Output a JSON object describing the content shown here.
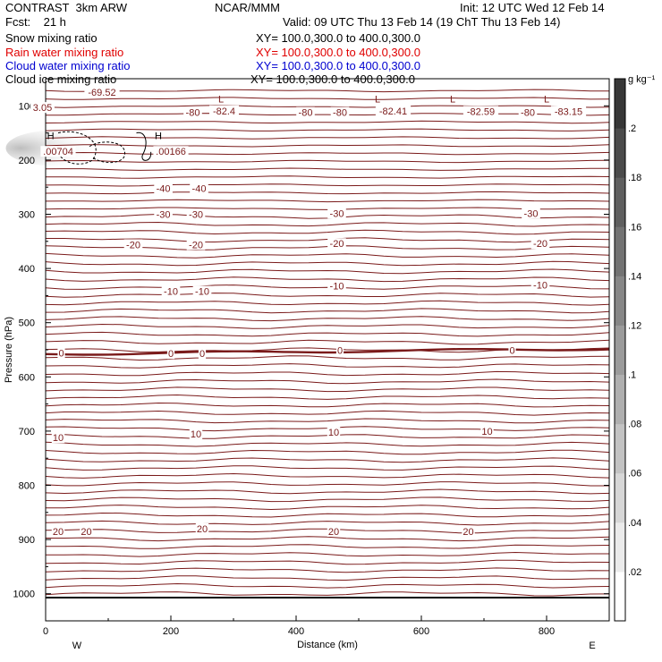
{
  "header": {
    "model": "CONTRAST  3km ARW",
    "fcst": "Fcst:    21 h",
    "org": "NCAR/MMM",
    "init": "Init: 12 UTC Wed 12 Feb 14",
    "valid": "Valid: 09 UTC Thu 13 Feb 14 (19 ChT Thu 13 Feb 14)",
    "fields": [
      {
        "name": "Snow mixing ratio",
        "xy": "XY= 100.0,300.0 to 400.0,300.0",
        "color": "#000000"
      },
      {
        "name": "Rain water mixing ratio",
        "xy": "XY= 100.0,300.0 to 400.0,300.0",
        "color": "#e00000"
      },
      {
        "name": "Cloud water mixing ratio",
        "xy": "XY= 100.0,300.0 to 400.0,300.0",
        "color": "#0000d0"
      },
      {
        "name": "Cloud ice mixing ratio",
        "xy": "XY= 100.0,300.0 to 400.0,300.0",
        "color": "#000000"
      }
    ]
  },
  "colors": {
    "contour": "#7a1a1a",
    "axis": "#000000",
    "shade_dark": "#3a3a3a"
  },
  "chart_data": {
    "type": "contour",
    "xlabel": "Distance (km)",
    "ylabel": "Pressure (hPa)",
    "xlim": [
      0,
      900
    ],
    "ylim": [
      1050,
      50
    ],
    "x_ticks": [
      0,
      200,
      400,
      600,
      800
    ],
    "y_ticks": [
      100,
      200,
      300,
      400,
      500,
      600,
      700,
      800,
      900,
      1000
    ],
    "x_end_labels": {
      "left": "W",
      "right": "E"
    },
    "colorbar": {
      "unit": "g kg⁻¹",
      "ticks": [
        ".02",
        ".04",
        ".06",
        ".08",
        ".1",
        ".12",
        ".14",
        ".16",
        ".18",
        ".2"
      ],
      "range": [
        0,
        0.22
      ]
    },
    "contour_labels": [
      {
        "text": "-69.52",
        "x": 90,
        "p": 75
      },
      {
        "text": "-80",
        "x": 235,
        "p": 112
      },
      {
        "text": "-82.4",
        "x": 285,
        "p": 109
      },
      {
        "text": "-80",
        "x": 415,
        "p": 112
      },
      {
        "text": "-80",
        "x": 470,
        "p": 112
      },
      {
        "text": "-82.41",
        "x": 555,
        "p": 109
      },
      {
        "text": "-82.59",
        "x": 695,
        "p": 110
      },
      {
        "text": "-80",
        "x": 770,
        "p": 112
      },
      {
        "text": "-83.15",
        "x": 835,
        "p": 110
      },
      {
        "text": "-40",
        "x": 188,
        "p": 252
      },
      {
        "text": "-40",
        "x": 245,
        "p": 252
      },
      {
        "text": "-30",
        "x": 188,
        "p": 300
      },
      {
        "text": "-30",
        "x": 240,
        "p": 300
      },
      {
        "text": "-30",
        "x": 465,
        "p": 298
      },
      {
        "text": "-30",
        "x": 775,
        "p": 298
      },
      {
        "text": "-20",
        "x": 140,
        "p": 356
      },
      {
        "text": "-20",
        "x": 240,
        "p": 356
      },
      {
        "text": "-20",
        "x": 465,
        "p": 354
      },
      {
        "text": "-20",
        "x": 790,
        "p": 354
      },
      {
        "text": "-10",
        "x": 200,
        "p": 442
      },
      {
        "text": "-10",
        "x": 250,
        "p": 442
      },
      {
        "text": "-10",
        "x": 465,
        "p": 432
      },
      {
        "text": "-10",
        "x": 790,
        "p": 430
      },
      {
        "text": "0",
        "x": 25,
        "p": 556
      },
      {
        "text": "0",
        "x": 200,
        "p": 557
      },
      {
        "text": "0",
        "x": 250,
        "p": 557
      },
      {
        "text": "0",
        "x": 470,
        "p": 551
      },
      {
        "text": "0",
        "x": 745,
        "p": 551
      },
      {
        "text": "10",
        "x": 20,
        "p": 712
      },
      {
        "text": "10",
        "x": 240,
        "p": 705
      },
      {
        "text": "10",
        "x": 460,
        "p": 702
      },
      {
        "text": "10",
        "x": 705,
        "p": 700
      },
      {
        "text": "20",
        "x": 20,
        "p": 885
      },
      {
        "text": "20",
        "x": 65,
        "p": 885
      },
      {
        "text": "20",
        "x": 250,
        "p": 880
      },
      {
        "text": "20",
        "x": 460,
        "p": 885
      },
      {
        "text": "20",
        "x": 675,
        "p": 885
      },
      {
        "text": "3.05",
        "x": -5,
        "p": 103
      },
      {
        "text": ".00704",
        "x": 20,
        "p": 184
      },
      {
        "text": ".00166",
        "x": 200,
        "p": 184
      }
    ],
    "highs_lows": [
      {
        "text": "L",
        "x": 280,
        "p": 87
      },
      {
        "text": "L",
        "x": 530,
        "p": 87
      },
      {
        "text": "L",
        "x": 650,
        "p": 87
      },
      {
        "text": "L",
        "x": 800,
        "p": 87
      },
      {
        "text": "H",
        "x": 8,
        "p": 155
      },
      {
        "text": "H",
        "x": 180,
        "p": 155
      }
    ]
  }
}
